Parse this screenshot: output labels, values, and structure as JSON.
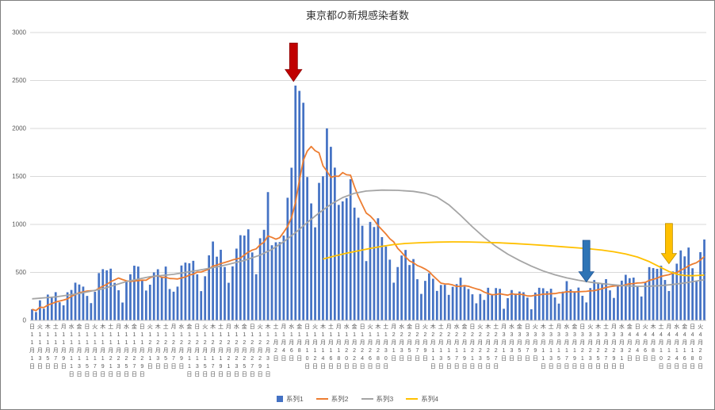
{
  "chart_data": {
    "type": "bar",
    "combo": "bar + 3 line series",
    "title": "東京都の新規感染者数",
    "xlabel": "",
    "ylabel": "",
    "ylim": [
      0,
      3000
    ],
    "yticks": [
      0,
      500,
      1000,
      1500,
      2000,
      2500,
      3000
    ],
    "grid": "horizontal",
    "legend_position": "bottom",
    "x_range_note": "daily values Nov 1 2020 - Apr 21 2021, every 2nd day labeled",
    "x_labels": [
      "日11月1日",
      "火11月3日",
      "木11月5日",
      "土11月7日",
      "月11月9日",
      "水11月11日",
      "金11月13日",
      "日11月15日",
      "火11月17日",
      "木11月19日",
      "土11月21日",
      "月11月23日",
      "水11月25日",
      "金11月27日",
      "日11月29日",
      "火12月1日",
      "木12月3日",
      "土12月5日",
      "月12月7日",
      "水12月9日",
      "金12月11日",
      "日12月13日",
      "火12月15日",
      "木12月17日",
      "土12月19日",
      "月12月21日",
      "水12月23日",
      "金12月25日",
      "日12月27日",
      "火12月29日",
      "木12月31日",
      "土1月2日",
      "月1月4日",
      "水1月6日",
      "金1月8日",
      "日1月10日",
      "火1月12日",
      "木1月14日",
      "土1月16日",
      "月1月18日",
      "水1月20日",
      "金1月22日",
      "日1月24日",
      "火1月26日",
      "木1月28日",
      "土1月30日",
      "月2月1日",
      "水2月3日",
      "金2月5日",
      "日2月7日",
      "火2月9日",
      "木2月11日",
      "土2月13日",
      "月2月15日",
      "水2月17日",
      "金2月19日",
      "日2月21日",
      "火2月23日",
      "木2月25日",
      "土2月27日",
      "月3月1日",
      "水3月3日",
      "金3月5日",
      "日3月7日",
      "火3月9日",
      "木3月11日",
      "土3月13日",
      "月3月15日",
      "水3月17日",
      "金3月19日",
      "日3月21日",
      "火3月23日",
      "木3月25日",
      "土3月27日",
      "月3月29日",
      "水3月31日",
      "金4月2日",
      "日4月4日",
      "火4月6日",
      "木4月8日",
      "土4月10日",
      "月4月12日",
      "水4月14日",
      "金4月16日",
      "日4月18日",
      "火4月20日"
    ],
    "series": [
      {
        "name": "系列1",
        "type": "bar",
        "color": "#4472C4",
        "values": [
          116,
          87,
          209,
          122,
          269,
          242,
          294,
          189,
          157,
          293,
          317,
          393,
          374,
          352,
          255,
          180,
          298,
          493,
          534,
          522,
          539,
          391,
          314,
          186,
          401,
          481,
          570,
          561,
          418,
          311,
          372,
          500,
          533,
          449,
          561,
          327,
          299,
          352,
          572,
          602,
          595,
          621,
          480,
          305,
          460,
          678,
          822,
          664,
          736,
          556,
          392,
          563,
          748,
          888,
          884,
          949,
          708,
          481,
          856,
          944,
          1337,
          783,
          814,
          816,
          884,
          1278,
          1591,
          2447,
          2392,
          2268,
          1494,
          1219,
          970,
          1433,
          1502,
          2001,
          1809,
          1592,
          1204,
          1240,
          1274,
          1471,
          1175,
          1070,
          986,
          618,
          1026,
          973,
          1064,
          868,
          769,
          633,
          393,
          556,
          676,
          734,
          577,
          639,
          429,
          276,
          412,
          491,
          434,
          307,
          369,
          371,
          266,
          350,
          378,
          445,
          353,
          327,
          272,
          178,
          275,
          213,
          340,
          270,
          337,
          329,
          121,
          232,
          316,
          279,
          301,
          293,
          237,
          116,
          290,
          340,
          335,
          304,
          330,
          239,
          175,
          300,
          409,
          323,
          303,
          342,
          256,
          187,
          337,
          420,
          394,
          376,
          430,
          313,
          234,
          364,
          414,
          475,
          440,
          446,
          355,
          249,
          399,
          555,
          545,
          537,
          570,
          421,
          306,
          510,
          591,
          729,
          667,
          759,
          543,
          405,
          711,
          843
        ]
      },
      {
        "name": "系列2",
        "type": "line",
        "color": "#ED7D31",
        "derivation": "7-day trailing moving average of 系列1"
      },
      {
        "name": "系列3",
        "type": "line",
        "color": "#A5A5A5",
        "points": [
          [
            0,
            225
          ],
          [
            6,
            245
          ],
          [
            12,
            280
          ],
          [
            18,
            330
          ],
          [
            24,
            405
          ],
          [
            30,
            455
          ],
          [
            36,
            480
          ],
          [
            42,
            520
          ],
          [
            48,
            565
          ],
          [
            54,
            625
          ],
          [
            58,
            680
          ],
          [
            61,
            740
          ],
          [
            64,
            820
          ],
          [
            67,
            915
          ],
          [
            70,
            1020
          ],
          [
            73,
            1120
          ],
          [
            76,
            1210
          ],
          [
            79,
            1280
          ],
          [
            82,
            1325
          ],
          [
            85,
            1348
          ],
          [
            89,
            1358
          ],
          [
            93,
            1355
          ],
          [
            97,
            1345
          ],
          [
            100,
            1325
          ],
          [
            103,
            1285
          ],
          [
            106,
            1205
          ],
          [
            109,
            1095
          ],
          [
            112,
            975
          ],
          [
            115,
            865
          ],
          [
            118,
            770
          ],
          [
            121,
            690
          ],
          [
            124,
            625
          ],
          [
            127,
            565
          ],
          [
            130,
            515
          ],
          [
            133,
            475
          ],
          [
            136,
            443
          ],
          [
            139,
            418
          ],
          [
            142,
            398
          ],
          [
            145,
            383
          ],
          [
            148,
            370
          ],
          [
            151,
            360
          ],
          [
            154,
            355
          ],
          [
            157,
            356
          ],
          [
            160,
            362
          ],
          [
            163,
            374
          ],
          [
            166,
            390
          ],
          [
            169,
            410
          ],
          [
            171,
            424
          ]
        ]
      },
      {
        "name": "系列4",
        "type": "line",
        "color": "#FFC000",
        "points": [
          [
            74,
            640
          ],
          [
            77,
            672
          ],
          [
            80,
            700
          ],
          [
            83,
            726
          ],
          [
            86,
            750
          ],
          [
            89,
            772
          ],
          [
            92,
            790
          ],
          [
            95,
            802
          ],
          [
            99,
            810
          ],
          [
            103,
            816
          ],
          [
            107,
            818
          ],
          [
            111,
            817
          ],
          [
            115,
            813
          ],
          [
            119,
            808
          ],
          [
            123,
            800
          ],
          [
            127,
            790
          ],
          [
            131,
            779
          ],
          [
            135,
            767
          ],
          [
            139,
            755
          ],
          [
            142,
            745
          ],
          [
            145,
            732
          ],
          [
            148,
            715
          ],
          [
            151,
            692
          ],
          [
            154,
            660
          ],
          [
            157,
            612
          ],
          [
            160,
            550
          ],
          [
            162,
            510
          ],
          [
            164,
            482
          ],
          [
            166,
            468
          ],
          [
            168,
            465
          ],
          [
            171,
            472
          ]
        ]
      }
    ],
    "annotations": [
      {
        "name": "red-arrow",
        "shape": "block-arrow-down",
        "color": "#C00000",
        "stroke": "#8B0000",
        "day": 66.5,
        "value_top": 2890,
        "value_tip": 2490,
        "shaft_w": 5,
        "head_w": 10.5,
        "head_h": 15
      },
      {
        "name": "blue-arrow",
        "shape": "block-arrow-down",
        "color": "#2E74B5",
        "stroke": "#1F5597",
        "day": 141,
        "value_top": 835,
        "value_tip": 400,
        "shaft_w": 4.5,
        "head_w": 9.5,
        "head_h": 13
      },
      {
        "name": "yellow-arrow",
        "shape": "block-arrow-down",
        "color": "#FFC000",
        "stroke": "#BF9000",
        "day": 162,
        "value_top": 1010,
        "value_tip": 590,
        "shaft_w": 4.5,
        "head_w": 9.5,
        "head_h": 13
      }
    ]
  }
}
